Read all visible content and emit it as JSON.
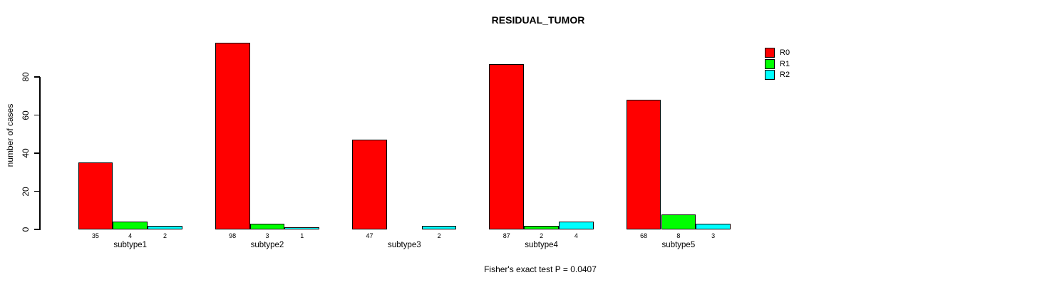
{
  "chart_data": {
    "type": "bar",
    "title": "RESIDUAL_TUMOR",
    "ylabel": "number of cases",
    "xlabel": "",
    "categories": [
      "subtype1",
      "subtype2",
      "subtype3",
      "subtype4",
      "subtype5"
    ],
    "series": [
      {
        "name": "R0",
        "color": "#ff0000",
        "values": [
          35,
          98,
          47,
          87,
          68
        ]
      },
      {
        "name": "R1",
        "color": "#00ff00",
        "values": [
          4,
          3,
          0,
          2,
          8
        ]
      },
      {
        "name": "R2",
        "color": "#00ffff",
        "values": [
          2,
          1,
          2,
          4,
          3
        ]
      }
    ],
    "yticks": [
      0,
      20,
      40,
      60,
      80
    ],
    "ylim": [
      0,
      99
    ],
    "grid": false,
    "bar_value_labels_shown": true,
    "zero_value_labels_hidden": true,
    "legend_position": "top-right",
    "footnote": "Fisher's exact test P = 0.0407"
  }
}
